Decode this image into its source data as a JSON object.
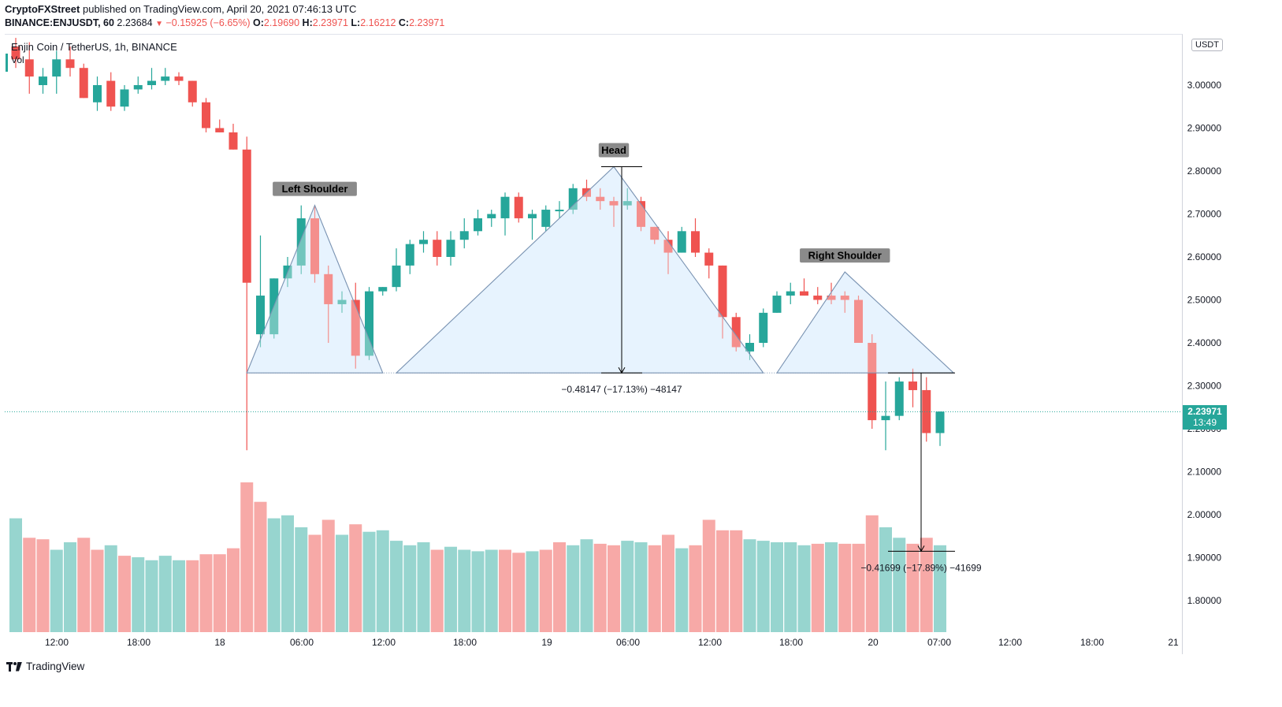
{
  "header": {
    "publisher": "CryptoFXStreet",
    "published_text": "published on TradingView.com, April 20, 2021 07:46:13 UTC",
    "symbol_line": "BINANCE:ENJUSDT, 60",
    "last_price": "2.23684",
    "change": "−0.15925 (−6.65%)",
    "o_label": "O:",
    "o_value": "2.19690",
    "h_label": "H:",
    "h_value": "2.23971",
    "l_label": "L:",
    "l_value": "2.16212",
    "c_label": "C:",
    "c_value": "2.23971"
  },
  "legend": {
    "title": "Enjin Coin / TetherUS, 1h, BINANCE",
    "volume": "Vol"
  },
  "price_scale": {
    "currency": "USDT",
    "current_price": "2.23971",
    "countdown": "13:49"
  },
  "footer": {
    "brand": "TradingView"
  },
  "colors": {
    "up": "#26a69a",
    "down": "#ef5350",
    "pattern_fill": "#bbdefb",
    "pattern_line": "#7b94b3"
  },
  "chart_data": {
    "type": "candlestick",
    "timeframe": "1h",
    "y_axis": {
      "min": 1.72,
      "max": 3.09,
      "ticks": [
        "3.00000",
        "2.90000",
        "2.80000",
        "2.70000",
        "2.60000",
        "2.50000",
        "2.40000",
        "2.30000",
        "2.20000",
        "2.10000",
        "2.00000",
        "1.90000",
        "1.80000"
      ]
    },
    "x_axis_ticks": [
      "12:00",
      "18:00",
      "18",
      "06:00",
      "12:00",
      "18:00",
      "19",
      "06:00",
      "12:00",
      "18:00",
      "20",
      "07:00",
      "12:00",
      "18:00",
      "21"
    ],
    "candles": [
      {
        "o": 3.09,
        "h": 3.11,
        "l": 3.04,
        "c": 3.06
      },
      {
        "o": 3.06,
        "h": 3.1,
        "l": 2.98,
        "c": 3.02
      },
      {
        "o": 3.0,
        "h": 3.04,
        "l": 2.98,
        "c": 3.02
      },
      {
        "o": 3.02,
        "h": 3.08,
        "l": 2.98,
        "c": 3.06
      },
      {
        "o": 3.06,
        "h": 3.09,
        "l": 3.02,
        "c": 3.04
      },
      {
        "o": 3.04,
        "h": 3.05,
        "l": 2.97,
        "c": 2.97
      },
      {
        "o": 2.96,
        "h": 3.02,
        "l": 2.94,
        "c": 3.0
      },
      {
        "o": 3.01,
        "h": 3.03,
        "l": 2.94,
        "c": 2.95
      },
      {
        "o": 2.95,
        "h": 3.0,
        "l": 2.94,
        "c": 2.99
      },
      {
        "o": 2.99,
        "h": 3.02,
        "l": 2.98,
        "c": 3.0
      },
      {
        "o": 3.0,
        "h": 3.04,
        "l": 2.99,
        "c": 3.01
      },
      {
        "o": 3.01,
        "h": 3.04,
        "l": 3.0,
        "c": 3.02
      },
      {
        "o": 3.02,
        "h": 3.03,
        "l": 3.0,
        "c": 3.01
      },
      {
        "o": 3.01,
        "h": 3.01,
        "l": 2.95,
        "c": 2.96
      },
      {
        "o": 2.96,
        "h": 2.97,
        "l": 2.89,
        "c": 2.9
      },
      {
        "o": 2.9,
        "h": 2.92,
        "l": 2.89,
        "c": 2.89
      },
      {
        "o": 2.89,
        "h": 2.91,
        "l": 2.85,
        "c": 2.85
      },
      {
        "o": 2.85,
        "h": 2.88,
        "l": 2.15,
        "c": 2.54
      },
      {
        "o": 2.42,
        "h": 2.65,
        "l": 2.39,
        "c": 2.51
      },
      {
        "o": 2.42,
        "h": 2.55,
        "l": 2.41,
        "c": 2.55
      },
      {
        "o": 2.55,
        "h": 2.6,
        "l": 2.53,
        "c": 2.58
      },
      {
        "o": 2.58,
        "h": 2.72,
        "l": 2.56,
        "c": 2.69
      },
      {
        "o": 2.69,
        "h": 2.72,
        "l": 2.54,
        "c": 2.56
      },
      {
        "o": 2.56,
        "h": 2.58,
        "l": 2.4,
        "c": 2.49
      },
      {
        "o": 2.49,
        "h": 2.52,
        "l": 2.47,
        "c": 2.5
      },
      {
        "o": 2.5,
        "h": 2.54,
        "l": 2.34,
        "c": 2.37
      },
      {
        "o": 2.37,
        "h": 2.53,
        "l": 2.36,
        "c": 2.52
      },
      {
        "o": 2.52,
        "h": 2.53,
        "l": 2.51,
        "c": 2.53
      },
      {
        "o": 2.53,
        "h": 2.62,
        "l": 2.52,
        "c": 2.58
      },
      {
        "o": 2.58,
        "h": 2.64,
        "l": 2.56,
        "c": 2.63
      },
      {
        "o": 2.63,
        "h": 2.66,
        "l": 2.61,
        "c": 2.64
      },
      {
        "o": 2.64,
        "h": 2.66,
        "l": 2.58,
        "c": 2.6
      },
      {
        "o": 2.6,
        "h": 2.66,
        "l": 2.58,
        "c": 2.64
      },
      {
        "o": 2.64,
        "h": 2.69,
        "l": 2.62,
        "c": 2.66
      },
      {
        "o": 2.66,
        "h": 2.71,
        "l": 2.65,
        "c": 2.69
      },
      {
        "o": 2.69,
        "h": 2.71,
        "l": 2.67,
        "c": 2.7
      },
      {
        "o": 2.69,
        "h": 2.75,
        "l": 2.65,
        "c": 2.74
      },
      {
        "o": 2.74,
        "h": 2.75,
        "l": 2.68,
        "c": 2.69
      },
      {
        "o": 2.69,
        "h": 2.71,
        "l": 2.64,
        "c": 2.7
      },
      {
        "o": 2.67,
        "h": 2.72,
        "l": 2.66,
        "c": 2.71
      },
      {
        "o": 2.71,
        "h": 2.73,
        "l": 2.69,
        "c": 2.71
      },
      {
        "o": 2.71,
        "h": 2.77,
        "l": 2.7,
        "c": 2.76
      },
      {
        "o": 2.76,
        "h": 2.78,
        "l": 2.73,
        "c": 2.74
      },
      {
        "o": 2.74,
        "h": 2.76,
        "l": 2.71,
        "c": 2.73
      },
      {
        "o": 2.73,
        "h": 2.74,
        "l": 2.67,
        "c": 2.72
      },
      {
        "o": 2.72,
        "h": 2.76,
        "l": 2.71,
        "c": 2.73
      },
      {
        "o": 2.73,
        "h": 2.74,
        "l": 2.66,
        "c": 2.67
      },
      {
        "o": 2.67,
        "h": 2.67,
        "l": 2.63,
        "c": 2.64
      },
      {
        "o": 2.64,
        "h": 2.66,
        "l": 2.56,
        "c": 2.61
      },
      {
        "o": 2.61,
        "h": 2.67,
        "l": 2.61,
        "c": 2.66
      },
      {
        "o": 2.66,
        "h": 2.69,
        "l": 2.6,
        "c": 2.61
      },
      {
        "o": 2.61,
        "h": 2.62,
        "l": 2.55,
        "c": 2.58
      },
      {
        "o": 2.58,
        "h": 2.58,
        "l": 2.41,
        "c": 2.46
      },
      {
        "o": 2.46,
        "h": 2.47,
        "l": 2.38,
        "c": 2.39
      },
      {
        "o": 2.38,
        "h": 2.42,
        "l": 2.36,
        "c": 2.4
      },
      {
        "o": 2.4,
        "h": 2.48,
        "l": 2.39,
        "c": 2.47
      },
      {
        "o": 2.47,
        "h": 2.52,
        "l": 2.47,
        "c": 2.51
      },
      {
        "o": 2.51,
        "h": 2.54,
        "l": 2.49,
        "c": 2.52
      },
      {
        "o": 2.52,
        "h": 2.55,
        "l": 2.51,
        "c": 2.51
      },
      {
        "o": 2.51,
        "h": 2.53,
        "l": 2.49,
        "c": 2.5
      },
      {
        "o": 2.51,
        "h": 2.54,
        "l": 2.49,
        "c": 2.5
      },
      {
        "o": 2.51,
        "h": 2.52,
        "l": 2.47,
        "c": 2.5
      },
      {
        "o": 2.5,
        "h": 2.51,
        "l": 2.4,
        "c": 2.4
      },
      {
        "o": 2.4,
        "h": 2.42,
        "l": 2.2,
        "c": 2.22
      },
      {
        "o": 2.22,
        "h": 2.31,
        "l": 2.15,
        "c": 2.23
      },
      {
        "o": 2.23,
        "h": 2.32,
        "l": 2.22,
        "c": 2.31
      },
      {
        "o": 2.31,
        "h": 2.34,
        "l": 2.25,
        "c": 2.29
      },
      {
        "o": 2.29,
        "h": 2.32,
        "l": 2.17,
        "c": 2.19
      },
      {
        "o": 2.19,
        "h": 2.24,
        "l": 2.16,
        "c": 2.24
      }
    ],
    "volume": [
      {
        "v": 76,
        "d": false
      },
      {
        "v": 63,
        "d": true
      },
      {
        "v": 62,
        "d": true
      },
      {
        "v": 55,
        "d": false
      },
      {
        "v": 60,
        "d": false
      },
      {
        "v": 63,
        "d": true
      },
      {
        "v": 55,
        "d": true
      },
      {
        "v": 58,
        "d": false
      },
      {
        "v": 51,
        "d": true
      },
      {
        "v": 50,
        "d": false
      },
      {
        "v": 48,
        "d": false
      },
      {
        "v": 51,
        "d": false
      },
      {
        "v": 48,
        "d": false
      },
      {
        "v": 48,
        "d": true
      },
      {
        "v": 52,
        "d": true
      },
      {
        "v": 52,
        "d": true
      },
      {
        "v": 56,
        "d": true
      },
      {
        "v": 100,
        "d": true
      },
      {
        "v": 87,
        "d": true
      },
      {
        "v": 76,
        "d": false
      },
      {
        "v": 78,
        "d": false
      },
      {
        "v": 70,
        "d": false
      },
      {
        "v": 65,
        "d": true
      },
      {
        "v": 75,
        "d": true
      },
      {
        "v": 65,
        "d": false
      },
      {
        "v": 72,
        "d": true
      },
      {
        "v": 67,
        "d": false
      },
      {
        "v": 68,
        "d": false
      },
      {
        "v": 61,
        "d": false
      },
      {
        "v": 58,
        "d": false
      },
      {
        "v": 60,
        "d": false
      },
      {
        "v": 55,
        "d": true
      },
      {
        "v": 57,
        "d": false
      },
      {
        "v": 55,
        "d": false
      },
      {
        "v": 54,
        "d": false
      },
      {
        "v": 55,
        "d": false
      },
      {
        "v": 55,
        "d": true
      },
      {
        "v": 53,
        "d": true
      },
      {
        "v": 54,
        "d": false
      },
      {
        "v": 55,
        "d": true
      },
      {
        "v": 60,
        "d": true
      },
      {
        "v": 58,
        "d": false
      },
      {
        "v": 62,
        "d": false
      },
      {
        "v": 59,
        "d": true
      },
      {
        "v": 58,
        "d": true
      },
      {
        "v": 61,
        "d": false
      },
      {
        "v": 60,
        "d": false
      },
      {
        "v": 58,
        "d": true
      },
      {
        "v": 65,
        "d": true
      },
      {
        "v": 56,
        "d": false
      },
      {
        "v": 58,
        "d": true
      },
      {
        "v": 75,
        "d": true
      },
      {
        "v": 68,
        "d": true
      },
      {
        "v": 68,
        "d": true
      },
      {
        "v": 62,
        "d": false
      },
      {
        "v": 61,
        "d": false
      },
      {
        "v": 60,
        "d": false
      },
      {
        "v": 60,
        "d": false
      },
      {
        "v": 58,
        "d": false
      },
      {
        "v": 59,
        "d": true
      },
      {
        "v": 60,
        "d": false
      },
      {
        "v": 59,
        "d": true
      },
      {
        "v": 59,
        "d": true
      },
      {
        "v": 78,
        "d": true
      },
      {
        "v": 70,
        "d": false
      },
      {
        "v": 63,
        "d": false
      },
      {
        "v": 59,
        "d": true
      },
      {
        "v": 63,
        "d": true
      },
      {
        "v": 58,
        "d": false
      }
    ],
    "pattern": {
      "name": "head and shoulders",
      "labels": [
        "Left Shoulder",
        "Head",
        "Right Shoulder"
      ],
      "points": [
        {
          "i": 17,
          "p": 2.33
        },
        {
          "i": 22,
          "p": 2.72
        },
        {
          "i": 27,
          "p": 2.33
        },
        {
          "i": 28,
          "p": 2.33
        },
        {
          "i": 44,
          "p": 2.81
        },
        {
          "i": 55,
          "p": 2.33
        },
        {
          "i": 56,
          "p": 2.33
        },
        {
          "i": 61,
          "p": 2.565
        },
        {
          "i": 69,
          "p": 2.33
        }
      ],
      "neckline": 2.33
    },
    "measure_1": {
      "label": "−0.48147 (−17.13%) −48147",
      "from": 2.81,
      "to": 2.33
    },
    "measure_2": {
      "label": "−0.41699 (−17.89%) −41699",
      "from": 2.33,
      "to": 1.915
    },
    "current_price_line": 2.2397
  }
}
